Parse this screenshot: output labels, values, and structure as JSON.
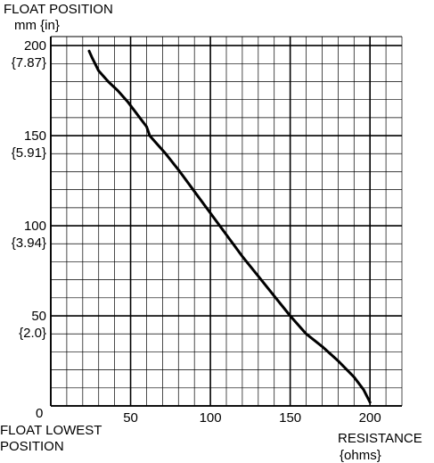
{
  "chart_data": {
    "type": "line",
    "ylabel": "FLOAT POSITION",
    "ylabel_unit": "mm {in}",
    "xlabel": "RESISTANCE",
    "xlabel_unit": "{ohms}",
    "origin_label": "0",
    "origin_note_line1": "FLOAT LOWEST",
    "origin_note_line2": "POSITION",
    "xlim": [
      0,
      220
    ],
    "ylim": [
      0,
      205
    ],
    "x_major_step": 50,
    "x_minor_step": 10,
    "y_major_step": 50,
    "y_minor_step": 10,
    "grid": true,
    "x_ticks": [
      {
        "value": 50,
        "label": "50"
      },
      {
        "value": 100,
        "label": "100"
      },
      {
        "value": 150,
        "label": "150"
      },
      {
        "value": 200,
        "label": "200"
      }
    ],
    "y_ticks": [
      {
        "value": 200,
        "label": "200",
        "sublabel": "{7.87}"
      },
      {
        "value": 150,
        "label": "150",
        "sublabel": "{5.91}"
      },
      {
        "value": 100,
        "label": "100",
        "sublabel": "{3.94}"
      },
      {
        "value": 50,
        "label": "50",
        "sublabel": "{2.0}"
      }
    ],
    "series": [
      {
        "x": [
          24,
          26,
          30,
          36,
          42,
          48,
          54,
          60,
          62,
          66,
          72,
          80,
          90,
          100,
          110,
          120,
          130,
          140,
          150,
          160,
          170,
          180,
          190,
          196,
          200
        ],
        "y": [
          197,
          193,
          186,
          180,
          175,
          169,
          162,
          155,
          150,
          146,
          140,
          131,
          119,
          107,
          95,
          83,
          72,
          61,
          50,
          40,
          33,
          25,
          16,
          9,
          2
        ]
      }
    ]
  }
}
